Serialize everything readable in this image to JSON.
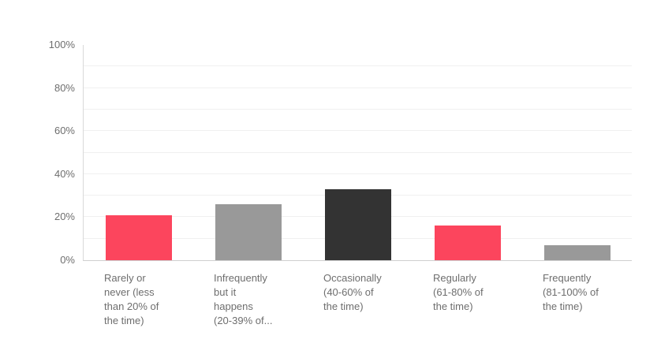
{
  "chart_data": {
    "type": "bar",
    "title": "",
    "categories": [
      "Rarely or never (less than 20% of the time)",
      "Infrequently but it happens (20-39% of...",
      "Occasionally (40-60% of the time)",
      "Regularly (61-80% of the time)",
      "Frequently (81-100% of the time)"
    ],
    "category_lines": [
      [
        "Rarely or",
        "never (less",
        "than 20% of",
        "the time)"
      ],
      [
        "Infrequently",
        "but it",
        "happens",
        "(20-39% of..."
      ],
      [
        "Occasionally",
        "(40-60% of",
        "the time)"
      ],
      [
        "Regularly",
        "(61-80% of",
        "the time)"
      ],
      [
        "Frequently",
        "(81-100% of",
        "the time)"
      ]
    ],
    "values": [
      21,
      26,
      33,
      16,
      7
    ],
    "unit": "%",
    "bar_colors": [
      "#fc455d",
      "#999999",
      "#333333",
      "#fc455d",
      "#999999"
    ],
    "y_ticks": [
      0,
      20,
      40,
      60,
      80,
      100
    ],
    "y_tick_labels": [
      "0%",
      "20%",
      "40%",
      "60%",
      "80%",
      "100%"
    ],
    "ylim": [
      0,
      100
    ],
    "gridline_interval": 10,
    "grid": "horizontal",
    "legend": "none",
    "xlabel": "",
    "ylabel": "",
    "style": {
      "background": "#ffffff",
      "gridline_color": "#f0f0f0",
      "axis_line_color": "#d6d6d6",
      "tick_label_color": "#6e6e6e",
      "bar_pink": "#fc455d",
      "bar_gray": "#999999",
      "bar_dark": "#333333"
    }
  }
}
